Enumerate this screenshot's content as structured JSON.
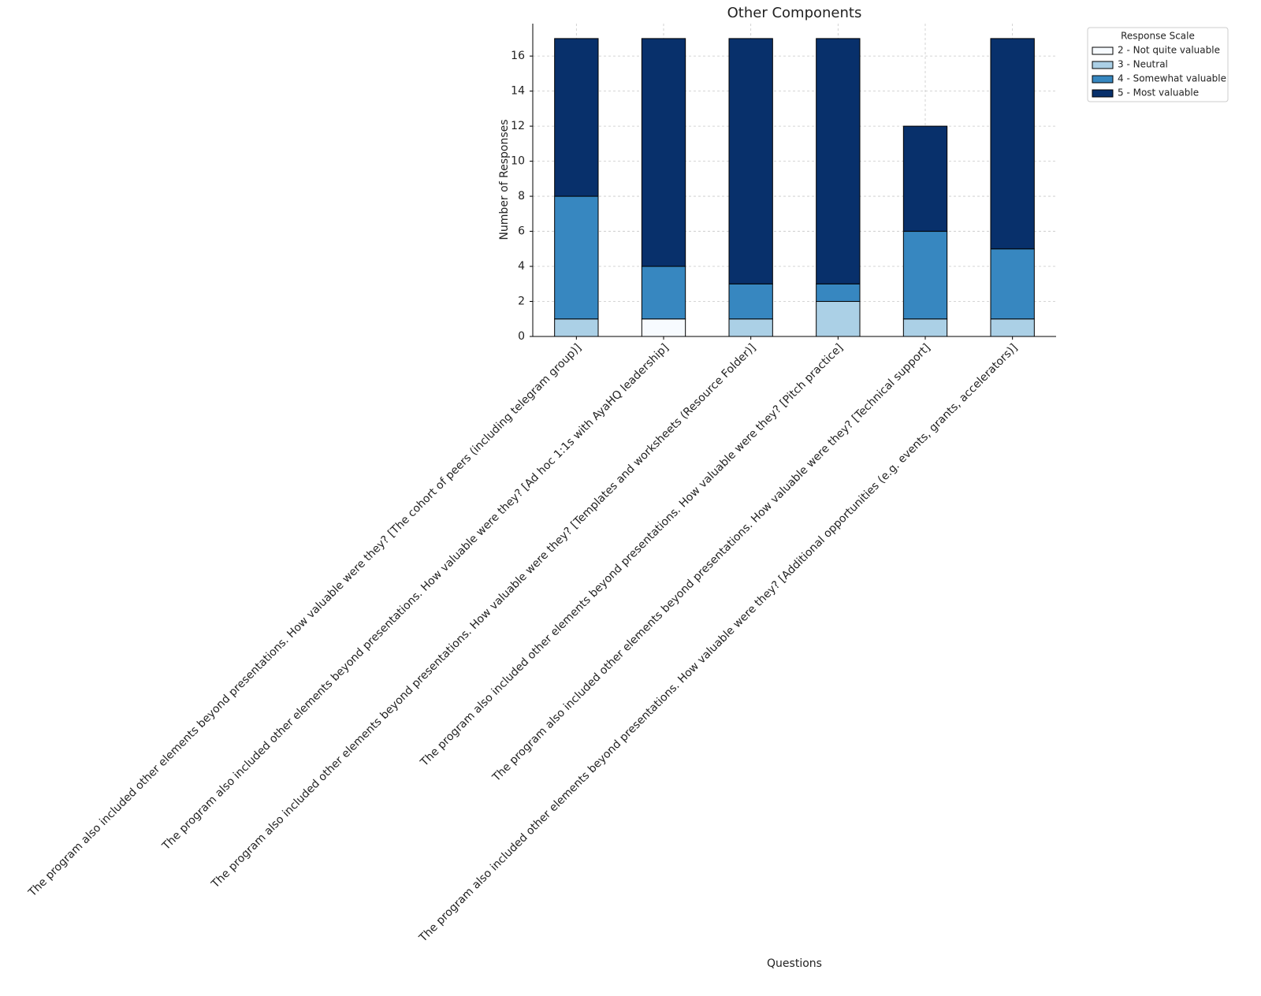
{
  "chart_data": {
    "type": "stacked_bar",
    "title": "Other Components",
    "x_label": "Questions",
    "y_label": "Number of Responses",
    "categories": [
      "The program also included other elements beyond presentations. How valuable were they? [The cohort of peers (including telegram group)]",
      "The program also included other elements beyond presentations. How valuable were they? [Ad hoc 1:1s with AyaHQ leadership]",
      "The program also included other elements beyond presentations. How valuable were they? [Templates and worksheets (Resource Folder)]",
      "The program also included other elements beyond presentations. How valuable were they? [Pitch practice]",
      "The program also included other elements beyond presentations. How valuable were they? [Technical support]",
      "The program also included other elements beyond presentations. How valuable were they? [Additional opportunities (e.g. events, grants, accelerators)]"
    ],
    "series": [
      {
        "name": "2 - Not quite valuable",
        "color": "#f7fbff",
        "values": [
          0,
          1,
          0,
          0,
          0,
          0
        ]
      },
      {
        "name": "3 - Neutral",
        "color": "#abd0e6",
        "values": [
          1,
          0,
          1,
          2,
          1,
          1
        ]
      },
      {
        "name": "4 - Somewhat valuable",
        "color": "#3787c0",
        "values": [
          7,
          3,
          2,
          1,
          5,
          4
        ]
      },
      {
        "name": "5 - Most valuable",
        "color": "#08306b",
        "values": [
          9,
          13,
          14,
          14,
          6,
          12
        ]
      }
    ],
    "legend_title": "Response Scale",
    "legend": "outside-upper-right",
    "ylim": [
      0,
      17.85
    ],
    "yticks": [
      0,
      2,
      4,
      6,
      8,
      10,
      12,
      14,
      16
    ],
    "grid": true
  }
}
